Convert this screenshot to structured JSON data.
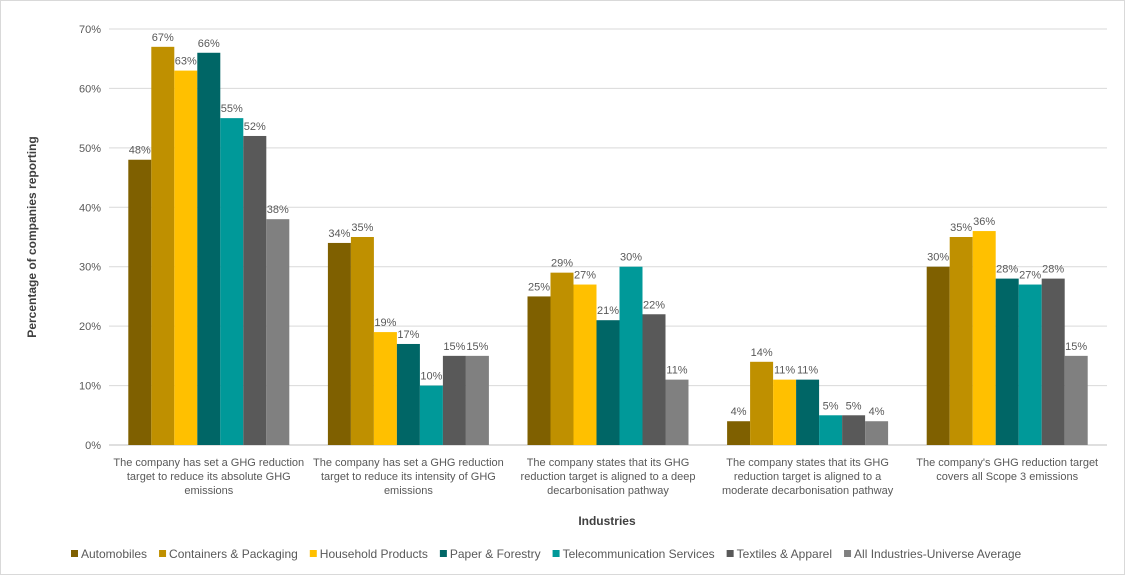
{
  "chart_data": {
    "type": "bar",
    "title": "",
    "xlabel": "Industries",
    "ylabel": "Percentage of companies reporting",
    "ylim": [
      0,
      70
    ],
    "yticks": [
      "0%",
      "10%",
      "20%",
      "30%",
      "40%",
      "50%",
      "60%",
      "70%"
    ],
    "grid": true,
    "legend_position": "bottom",
    "categories": [
      [
        "The company has set a GHG reduction",
        "target to reduce its absolute GHG",
        "emissions"
      ],
      [
        "The company has set a GHG reduction",
        "target to reduce its intensity of GHG",
        "emissions"
      ],
      [
        "The company states that its GHG",
        "reduction target is aligned to a deep",
        "decarbonisation pathway"
      ],
      [
        "The company states that its GHG",
        "reduction target is aligned to a",
        "moderate decarbonisation pathway"
      ],
      [
        "The company's GHG reduction target",
        "covers all Scope 3 emissions"
      ]
    ],
    "series": [
      {
        "name": "Automobiles",
        "color": "#7F6000",
        "values": [
          48,
          34,
          25,
          4,
          30
        ]
      },
      {
        "name": "Containers & Packaging",
        "color": "#BF9000",
        "values": [
          67,
          35,
          29,
          14,
          35
        ]
      },
      {
        "name": "Household Products",
        "color": "#FFC000",
        "values": [
          63,
          19,
          27,
          11,
          36
        ]
      },
      {
        "name": "Paper & Forestry",
        "color": "#006666",
        "values": [
          66,
          17,
          21,
          11,
          28
        ]
      },
      {
        "name": "Telecommunication Services",
        "color": "#009999",
        "values": [
          55,
          10,
          30,
          5,
          27
        ]
      },
      {
        "name": "Textiles & Apparel",
        "color": "#595959",
        "values": [
          52,
          15,
          22,
          5,
          28
        ]
      },
      {
        "name": "All Industries-Universe Average",
        "color": "#808080",
        "values": [
          38,
          15,
          11,
          4,
          15
        ]
      }
    ]
  }
}
